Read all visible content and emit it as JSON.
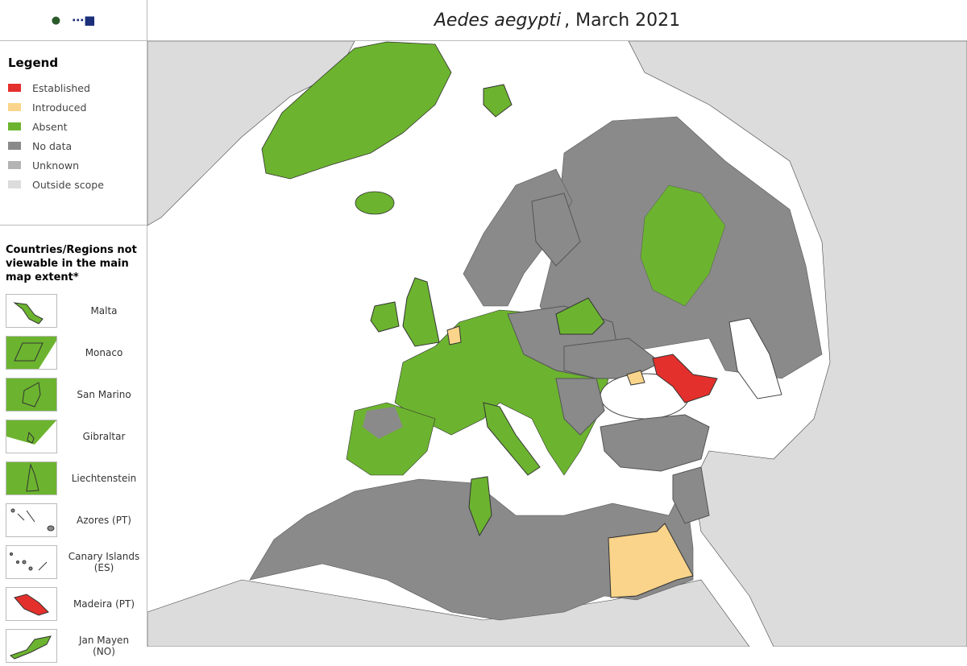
{
  "title": {
    "species": "Aedes aegypti",
    "date": ", March 2021"
  },
  "logos": {
    "ecdc": "ecdc",
    "efsa": "efsa"
  },
  "legend": {
    "heading": "Legend",
    "items": [
      {
        "label": "Established",
        "color": "#e3302c"
      },
      {
        "label": "Introduced",
        "color": "#f9d48a"
      },
      {
        "label": "Absent",
        "color": "#6cb42f"
      },
      {
        "label": "No data",
        "color": "#8a8a8a"
      },
      {
        "label": "Unknown",
        "color": "#b4b4b4"
      },
      {
        "label": "Outside scope",
        "color": "#dcdcdc"
      }
    ]
  },
  "regions": {
    "heading": "Countries/Regions not viewable in the main map extent*",
    "items": [
      {
        "label": "Malta",
        "status": "Absent"
      },
      {
        "label": "Monaco",
        "status": "Absent"
      },
      {
        "label": "San Marino",
        "status": "Absent"
      },
      {
        "label": "Gibraltar",
        "status": "Absent"
      },
      {
        "label": "Liechtenstein",
        "status": "Absent"
      },
      {
        "label": "Azores (PT)",
        "status": "No data"
      },
      {
        "label": "Canary Islands (ES)",
        "status": "No data"
      },
      {
        "label": "Madeira (PT)",
        "status": "Established"
      },
      {
        "label": "Jan Mayen (NO)",
        "status": "Absent"
      }
    ]
  }
}
